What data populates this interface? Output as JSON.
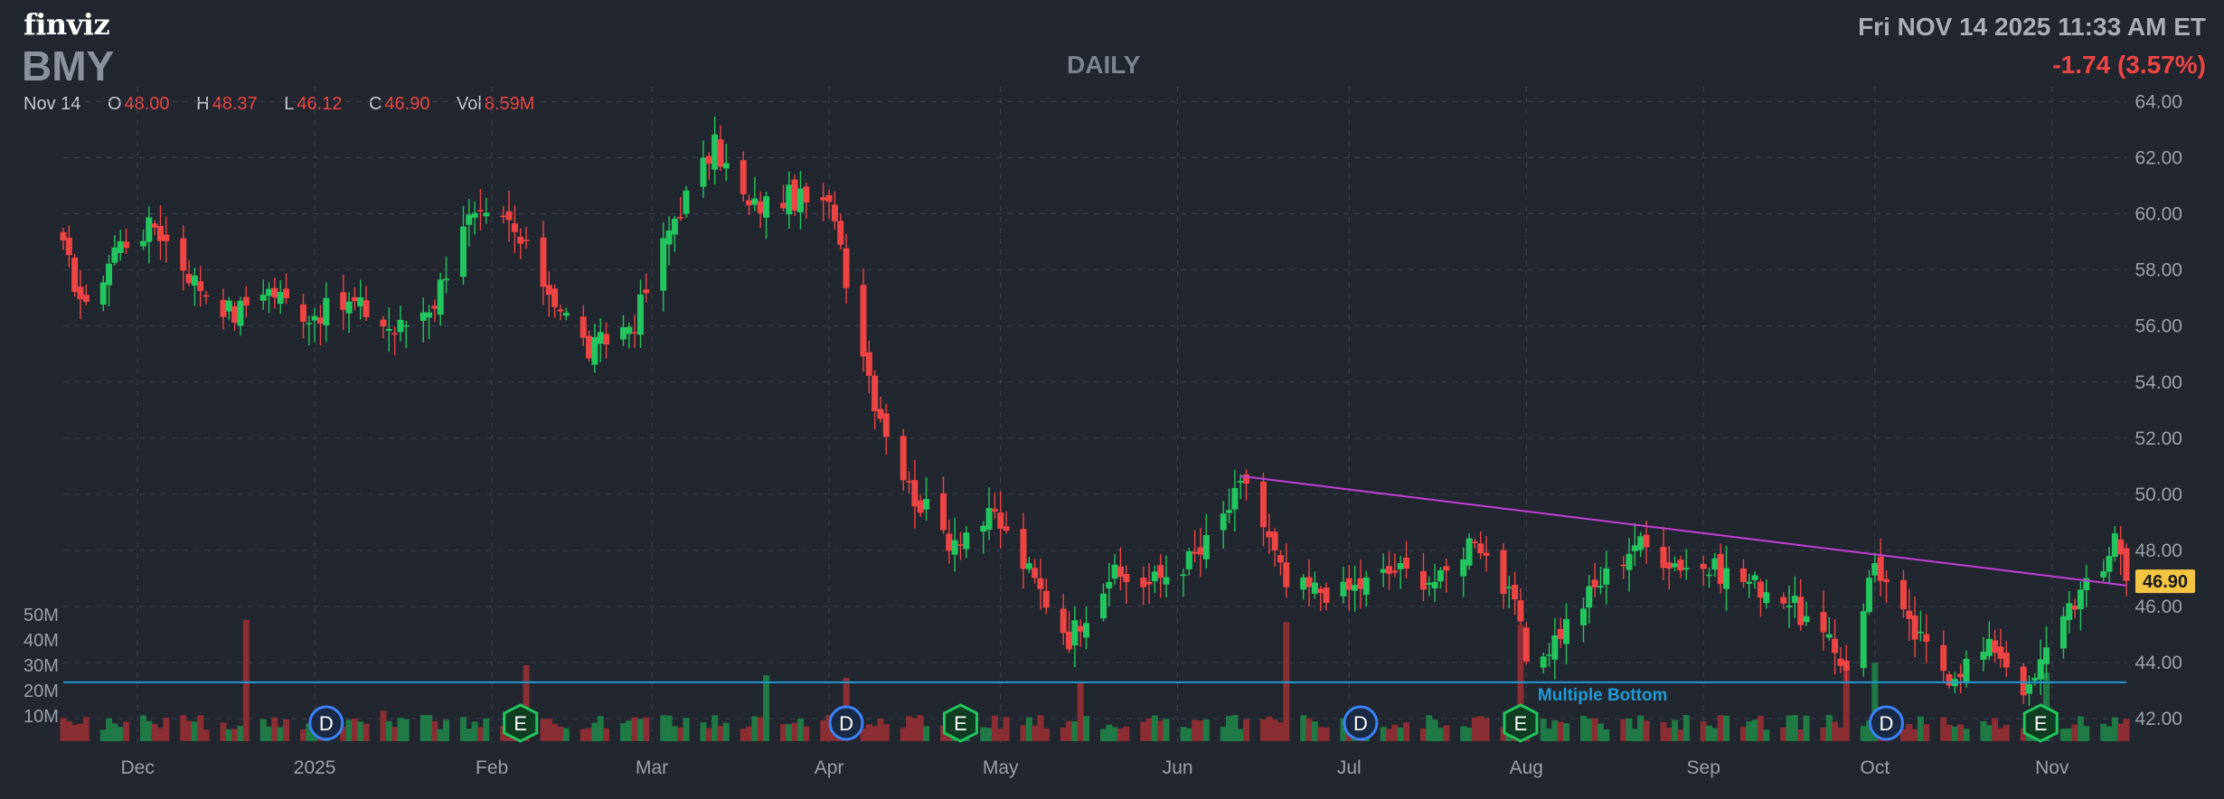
{
  "header": {
    "logo": "finviz",
    "ticker": "BMY",
    "timeframe": "DAILY",
    "datetime": "Fri NOV 14 2025 11:33 AM ET",
    "change": "-1.74 (3.57%)"
  },
  "ohlc": {
    "date": "Nov 14",
    "open_label": "O",
    "open": "48.00",
    "high_label": "H",
    "high": "48.37",
    "low_label": "L",
    "low": "46.12",
    "close_label": "C",
    "close": "46.90",
    "vol_label": "Vol",
    "vol": "8.59M"
  },
  "colors": {
    "background": "#22262f",
    "up": "#22c55e",
    "down": "#ef4444",
    "grid": "#3a3f4b",
    "trendline": "#c33fd6",
    "support": "#1e9bd7",
    "last_price_bg": "#f4c542"
  },
  "chart_data": {
    "type": "candlestick",
    "ylim": [
      41.2,
      64.4
    ],
    "y_ticks": [
      "64.00",
      "62.00",
      "60.00",
      "58.00",
      "56.00",
      "54.00",
      "52.00",
      "50.00",
      "48.00",
      "46.00",
      "44.00",
      "42.00"
    ],
    "y_tick_values": [
      64,
      62,
      60,
      58,
      56,
      54,
      52,
      50,
      48,
      46,
      44,
      42
    ],
    "x_tick_labels": [
      "Dec",
      "2025",
      "Feb",
      "Mar",
      "Apr",
      "May",
      "Jun",
      "Jul",
      "Aug",
      "Sep",
      "Oct",
      "Nov"
    ],
    "x_tick_dates": [
      "2024-12-01",
      "2025-01-01",
      "2025-02-01",
      "2025-03-01",
      "2025-04-01",
      "2025-05-01",
      "2025-06-01",
      "2025-07-01",
      "2025-08-01",
      "2025-09-01",
      "2025-10-01",
      "2025-11-01"
    ],
    "x_range": [
      "2024-11-18",
      "2025-11-14"
    ],
    "volume_ticks": [
      "50M",
      "40M",
      "30M",
      "20M",
      "10M"
    ],
    "volume_tick_values": [
      50,
      40,
      30,
      20,
      10
    ],
    "volume_max": 52,
    "last_price": "46.90",
    "close_path": [
      [
        "2024-11-18",
        58.7
      ],
      [
        "2024-11-22",
        56.5
      ],
      [
        "2024-11-27",
        58.8
      ],
      [
        "2024-12-04",
        59.6
      ],
      [
        "2024-12-11",
        57.6
      ],
      [
        "2024-12-18",
        56.4
      ],
      [
        "2024-12-23",
        57.4
      ],
      [
        "2024-12-31",
        56.4
      ],
      [
        "2025-01-08",
        56.8
      ],
      [
        "2025-01-15",
        55.8
      ],
      [
        "2025-01-22",
        56.9
      ],
      [
        "2025-01-27",
        59.8
      ],
      [
        "2025-02-04",
        59.6
      ],
      [
        "2025-02-10",
        57.6
      ],
      [
        "2025-02-18",
        55.1
      ],
      [
        "2025-02-26",
        56.2
      ],
      [
        "2025-03-05",
        59.9
      ],
      [
        "2025-03-12",
        62.4
      ],
      [
        "2025-03-18",
        60.2
      ],
      [
        "2025-03-25",
        60.6
      ],
      [
        "2025-04-02",
        60.1
      ],
      [
        "2025-04-04",
        57.8
      ],
      [
        "2025-04-09",
        53.4
      ],
      [
        "2025-04-15",
        50.2
      ],
      [
        "2025-04-22",
        48.4
      ],
      [
        "2025-04-30",
        49.2
      ],
      [
        "2025-05-06",
        47.2
      ],
      [
        "2025-05-13",
        44.9
      ],
      [
        "2025-05-20",
        47.1
      ],
      [
        "2025-05-27",
        46.8
      ],
      [
        "2025-06-05",
        47.9
      ],
      [
        "2025-06-13",
        50.5
      ],
      [
        "2025-06-20",
        46.7
      ],
      [
        "2025-06-30",
        46.5
      ],
      [
        "2025-07-09",
        47.3
      ],
      [
        "2025-07-17",
        46.9
      ],
      [
        "2025-07-23",
        48.6
      ],
      [
        "2025-07-31",
        45.5
      ],
      [
        "2025-08-01",
        43.6
      ],
      [
        "2025-08-12",
        46.4
      ],
      [
        "2025-08-20",
        48.3
      ],
      [
        "2025-08-27",
        47.6
      ],
      [
        "2025-09-05",
        47.2
      ],
      [
        "2025-09-15",
        46.4
      ],
      [
        "2025-09-26",
        43.9
      ],
      [
        "2025-10-01",
        47.6
      ],
      [
        "2025-10-07",
        45.2
      ],
      [
        "2025-10-14",
        43.6
      ],
      [
        "2025-10-22",
        44.6
      ],
      [
        "2025-10-28",
        42.9
      ],
      [
        "2025-11-03",
        45.9
      ],
      [
        "2025-11-10",
        47.2
      ],
      [
        "2025-11-12",
        48.8
      ],
      [
        "2025-11-14",
        46.9
      ]
    ],
    "volume_spikes": [
      [
        "2024-12-20",
        48
      ],
      [
        "2025-01-13",
        12
      ],
      [
        "2025-02-07",
        30
      ],
      [
        "2025-03-21",
        26
      ],
      [
        "2025-04-04",
        25
      ],
      [
        "2025-05-15",
        23
      ],
      [
        "2025-06-20",
        47
      ],
      [
        "2025-07-31",
        46
      ],
      [
        "2025-09-26",
        30
      ],
      [
        "2025-10-01",
        31
      ],
      [
        "2025-10-31",
        27
      ]
    ],
    "trendline": [
      [
        "2025-06-12",
        50.65
      ],
      [
        "2025-11-14",
        46.75
      ]
    ],
    "support": {
      "y": 43.3,
      "from": "2024-11-18",
      "to": "2025-11-14",
      "label": "Multiple Bottom",
      "label_date": "2025-08-03"
    },
    "events": [
      {
        "label": "D",
        "type": "dividend",
        "date": "2025-01-03"
      },
      {
        "label": "E",
        "type": "earnings",
        "date": "2025-02-06"
      },
      {
        "label": "D",
        "type": "dividend",
        "date": "2025-04-04"
      },
      {
        "label": "E",
        "type": "earnings",
        "date": "2025-04-24"
      },
      {
        "label": "D",
        "type": "dividend",
        "date": "2025-07-03"
      },
      {
        "label": "E",
        "type": "earnings",
        "date": "2025-07-31"
      },
      {
        "label": "D",
        "type": "dividend",
        "date": "2025-10-03"
      },
      {
        "label": "E",
        "type": "earnings",
        "date": "2025-10-30"
      }
    ]
  }
}
